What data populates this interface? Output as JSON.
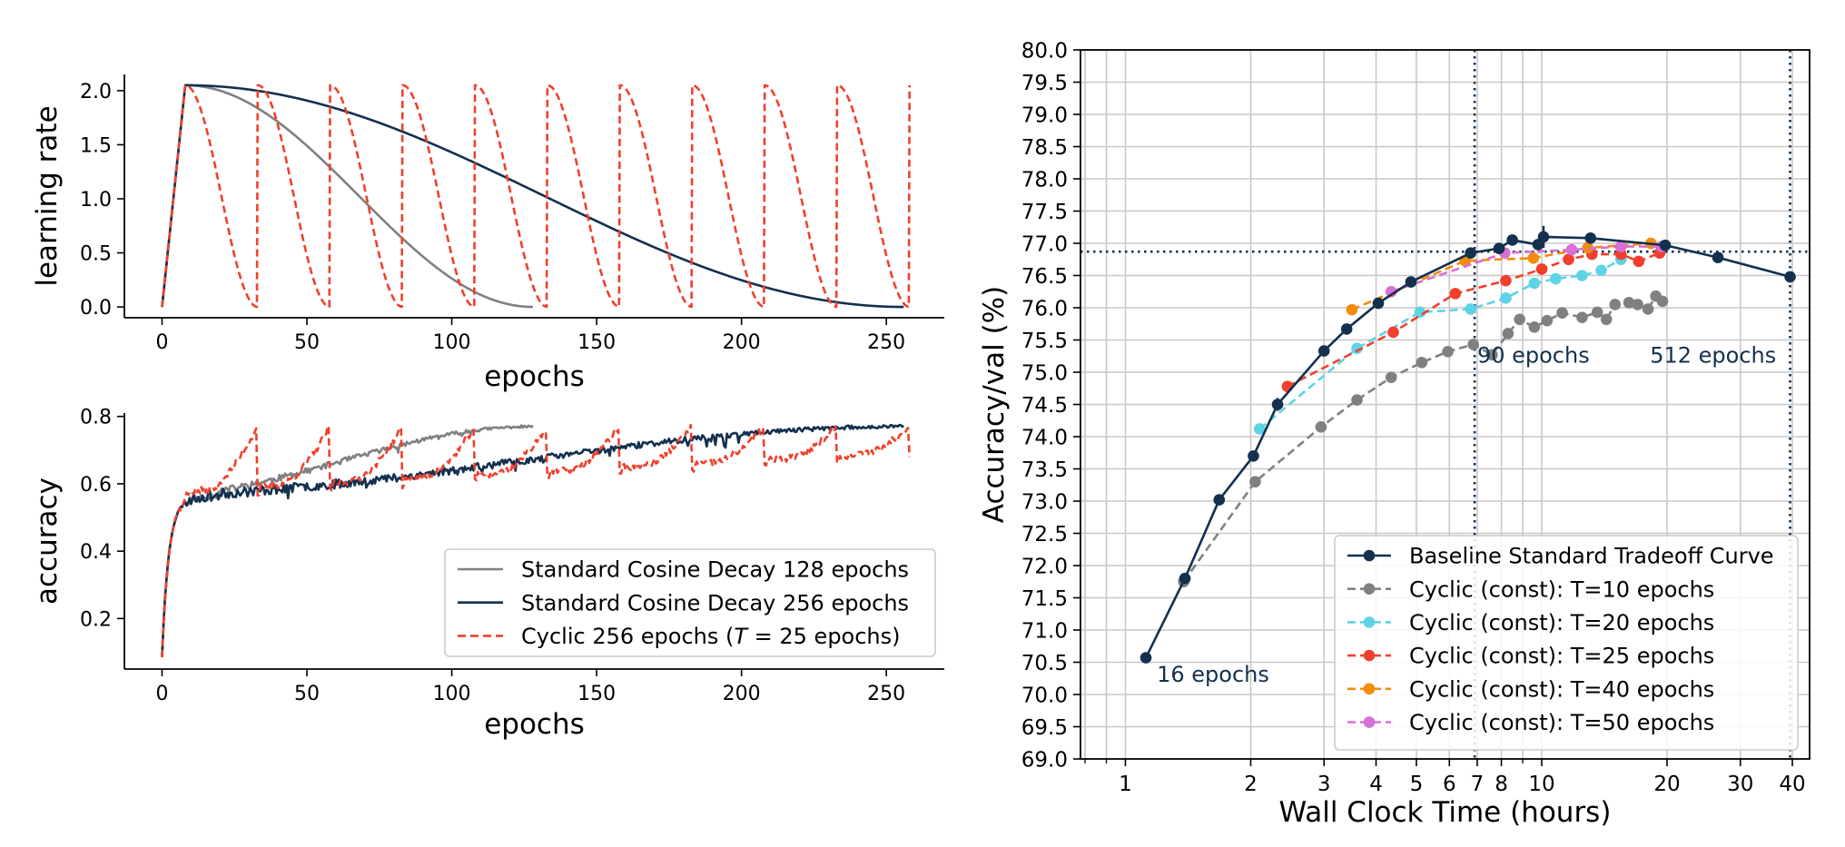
{
  "colors": {
    "gray": "#808080",
    "navy": "#13304f",
    "red": "#f0402c",
    "cyan": "#5ed3e6",
    "red_dot": "#f0402c",
    "orange": "#f18c0c",
    "violet": "#d76fd6",
    "grid": "#c8c8c8"
  },
  "chart_data": [
    {
      "id": "lr",
      "type": "line",
      "xlabel": "epochs",
      "ylabel": "learning rate",
      "xlim": [
        -13,
        270
      ],
      "ylim": [
        -0.1,
        2.15
      ],
      "xticks": [
        0,
        50,
        100,
        150,
        200,
        250
      ],
      "yticks": [
        0.0,
        0.5,
        1.0,
        1.5,
        2.0
      ],
      "ytick_format": 1,
      "grid": false,
      "series": [
        {
          "name": "Standard Cosine Decay 128 epochs",
          "color_key": "gray",
          "style": "solid",
          "generator": "cosine",
          "warmup": 8,
          "peak": 2.05,
          "end": 128
        },
        {
          "name": "Standard Cosine Decay 256 epochs",
          "color_key": "navy",
          "style": "solid",
          "generator": "cosine",
          "warmup": 8,
          "peak": 2.05,
          "end": 256
        },
        {
          "name": "Cyclic 256 epochs (T = 25 epochs)",
          "color_key": "red",
          "style": "dashed",
          "generator": "cyclic",
          "warmup": 8,
          "peak": 2.05,
          "period": 25,
          "end": 258
        }
      ]
    },
    {
      "id": "acc",
      "type": "line",
      "xlabel": "epochs",
      "ylabel": "accuracy",
      "xlim": [
        -13,
        270
      ],
      "ylim": [
        0.05,
        0.81
      ],
      "xticks": [
        0,
        50,
        100,
        150,
        200,
        250
      ],
      "yticks": [
        0.2,
        0.4,
        0.6,
        0.8
      ],
      "ytick_format": 1,
      "grid": false,
      "legend": {
        "placement": "lower-right",
        "entries": [
          {
            "label": "Standard Cosine Decay 128 epochs",
            "color_key": "gray",
            "style": "solid"
          },
          {
            "label": "Standard Cosine Decay 256 epochs",
            "color_key": "navy",
            "style": "solid"
          },
          {
            "label_pre": "Cyclic 256 epochs (",
            "label_italic": "T",
            "label_post": " = 25 epochs)",
            "color_key": "red",
            "style": "dashed"
          }
        ]
      },
      "series": [
        {
          "name": "Standard Cosine Decay 128 epochs",
          "color_key": "gray",
          "style": "solid",
          "generator": "acc_cosine",
          "end": 128,
          "final": 0.77,
          "noise": 0.012,
          "seed": 11
        },
        {
          "name": "Standard Cosine Decay 256 epochs",
          "color_key": "navy",
          "style": "solid",
          "generator": "acc_cosine",
          "end": 256,
          "final": 0.77,
          "noise": 0.016,
          "seed": 23
        },
        {
          "name": "Cyclic 256 epochs (T = 25 epochs)",
          "color_key": "red",
          "style": "dashed",
          "generator": "acc_cyclic",
          "period": 25,
          "end": 258,
          "final": 0.77,
          "noise": 0.01,
          "seed": 37
        }
      ]
    },
    {
      "id": "tradeoff",
      "type": "line",
      "xlabel": "Wall Clock Time (hours)",
      "ylabel": "Accuracy/val (%)",
      "xscale": "log",
      "xlim": [
        0.78,
        44
      ],
      "ylim": [
        69.0,
        80.0
      ],
      "xticks": [
        1,
        2,
        3,
        4,
        5,
        6,
        7,
        8,
        10,
        20,
        30,
        40
      ],
      "xtick_labels": [
        "1",
        "2",
        "3",
        "4",
        "5",
        "6",
        "7",
        "8",
        "10",
        "20",
        "30",
        "40"
      ],
      "xminor": [
        0.8,
        0.9,
        9
      ],
      "yticks": [
        69.0,
        69.5,
        70.0,
        70.5,
        71.0,
        71.5,
        72.0,
        72.5,
        73.0,
        73.5,
        74.0,
        74.5,
        75.0,
        75.5,
        76.0,
        76.5,
        77.0,
        77.5,
        78.0,
        78.5,
        79.0,
        79.5,
        80.0
      ],
      "ytick_format": 1,
      "grid": true,
      "ref_lines": {
        "vertical": [
          6.9,
          39.5
        ],
        "horizontal": 76.87
      },
      "annotations": [
        {
          "text": "90 epochs",
          "x": 7.0,
          "y": 75.15
        },
        {
          "text": "512 epochs",
          "x": 18.2,
          "y": 75.15
        },
        {
          "text": "16 epochs",
          "x": 1.19,
          "y": 70.2
        }
      ],
      "legend": {
        "placement": "lower-right",
        "entries": [
          {
            "label": "Baseline Standard Tradeoff Curve",
            "color_key": "navy",
            "style": "solid"
          },
          {
            "label": "Cyclic (const): T=10 epochs",
            "color_key": "gray",
            "style": "dashed"
          },
          {
            "label": "Cyclic (const): T=20 epochs",
            "color_key": "cyan",
            "style": "dashed"
          },
          {
            "label": "Cyclic (const): T=25 epochs",
            "color_key": "red_dot",
            "style": "dashed"
          },
          {
            "label": "Cyclic (const): T=40 epochs",
            "color_key": "orange",
            "style": "dashed"
          },
          {
            "label": "Cyclic (const): T=50 epochs",
            "color_key": "violet",
            "style": "dashed"
          }
        ]
      },
      "series": [
        {
          "name": "Cyclic (const): T=10 epochs",
          "color_key": "gray",
          "style": "dashed",
          "x": [
            1.38,
            2.05,
            2.95,
            3.6,
            4.35,
            5.15,
            5.95,
            6.85,
            7.6,
            8.3,
            8.85,
            9.6,
            10.3,
            11.2,
            12.5,
            13.6,
            14.3,
            15.0,
            16.2,
            17.0,
            18.0,
            18.8,
            19.5
          ],
          "y": [
            71.75,
            73.3,
            74.15,
            74.57,
            74.92,
            75.15,
            75.32,
            75.43,
            75.27,
            75.6,
            75.82,
            75.7,
            75.8,
            75.92,
            75.85,
            75.93,
            75.82,
            76.05,
            76.08,
            76.05,
            75.98,
            76.18,
            76.1
          ]
        },
        {
          "name": "Cyclic (const): T=20 epochs",
          "color_key": "cyan",
          "style": "dashed",
          "x": [
            2.1,
            3.6,
            5.1,
            6.75,
            8.2,
            9.6,
            10.8,
            12.5,
            13.9,
            15.5
          ],
          "y": [
            74.12,
            75.37,
            75.93,
            75.98,
            76.15,
            76.38,
            76.45,
            76.5,
            76.58,
            76.75
          ]
        },
        {
          "name": "Cyclic (const): T=25 epochs",
          "color_key": "red_dot",
          "style": "dashed",
          "x": [
            2.45,
            4.4,
            6.2,
            8.2,
            10.0,
            11.6,
            13.2,
            15.5,
            17.1,
            19.2
          ],
          "y": [
            74.78,
            75.62,
            76.22,
            76.42,
            76.6,
            76.75,
            76.83,
            76.83,
            76.72,
            76.85
          ]
        },
        {
          "name": "Cyclic (const): T=40 epochs",
          "color_key": "orange",
          "style": "dashed",
          "x": [
            3.5,
            6.55,
            9.55,
            12.9,
            18.3
          ],
          "y": [
            75.97,
            76.73,
            76.77,
            76.93,
            77.0
          ]
        },
        {
          "name": "Cyclic (const): T=50 epochs",
          "color_key": "violet",
          "style": "dashed",
          "x": [
            4.35,
            8.15,
            11.8,
            15.5,
            19.4
          ],
          "y": [
            76.25,
            76.85,
            76.9,
            76.95,
            76.95
          ]
        },
        {
          "name": "Baseline Standard Tradeoff Curve",
          "color_key": "navy",
          "style": "solid",
          "x": [
            1.12,
            1.39,
            1.68,
            2.03,
            2.32,
            3.0,
            3.4,
            4.05,
            4.85,
            6.75,
            7.9,
            8.5,
            9.8,
            10.1,
            13.1,
            19.8,
            26.5,
            39.5
          ],
          "y": [
            70.57,
            71.8,
            73.02,
            73.7,
            74.5,
            75.33,
            75.67,
            76.07,
            76.4,
            76.85,
            76.92,
            77.05,
            76.98,
            77.1,
            77.08,
            76.97,
            76.78,
            76.48
          ],
          "error_bars": [
            {
              "x": 10.1,
              "lo": 76.93,
              "hi": 77.27
            },
            {
              "x": 2.32,
              "lo": 74.4,
              "hi": 74.6
            }
          ]
        }
      ]
    }
  ]
}
